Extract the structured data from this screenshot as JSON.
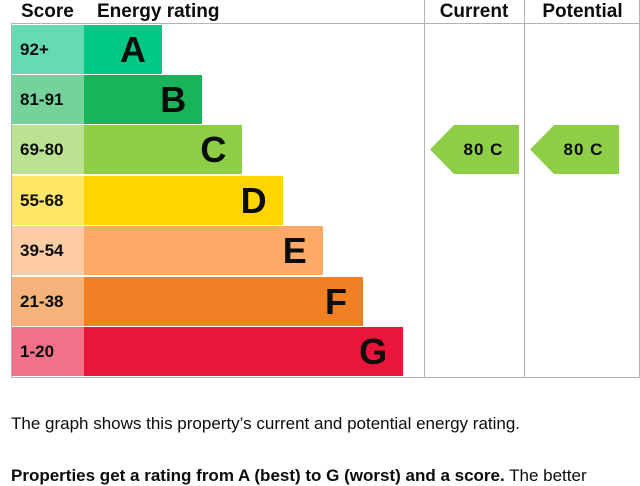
{
  "headers": {
    "score": "Score",
    "energy_rating": "Energy rating",
    "current": "Current",
    "potential": "Potential"
  },
  "bands": [
    {
      "score": "92+",
      "letter": "A",
      "color": "#00c781",
      "score_bg": "#66dbb3"
    },
    {
      "score": "81-91",
      "letter": "B",
      "color": "#19b459",
      "score_bg": "#75d29b"
    },
    {
      "score": "69-80",
      "letter": "C",
      "color": "#8dce46",
      "score_bg": "#bbe290"
    },
    {
      "score": "55-68",
      "letter": "D",
      "color": "#ffd500",
      "score_bg": "#ffe666"
    },
    {
      "score": "39-54",
      "letter": "E",
      "color": "#fcaa65",
      "score_bg": "#fdcca3"
    },
    {
      "score": "21-38",
      "letter": "F",
      "color": "#ef8023",
      "score_bg": "#f5b37b"
    },
    {
      "score": "1-20",
      "letter": "G",
      "color": "#e9153b",
      "score_bg": "#f27389"
    }
  ],
  "current": {
    "label": "80 C",
    "band_index": 2,
    "color": "#8dce46"
  },
  "potential": {
    "label": "80 C",
    "band_index": 2,
    "color": "#8dce46"
  },
  "caption": "The graph shows this property’s current and potential energy rating.",
  "subcaption_bold": "Properties get a rating from A (best) to G (worst) and a score.",
  "subcaption_rest": " The better"
}
